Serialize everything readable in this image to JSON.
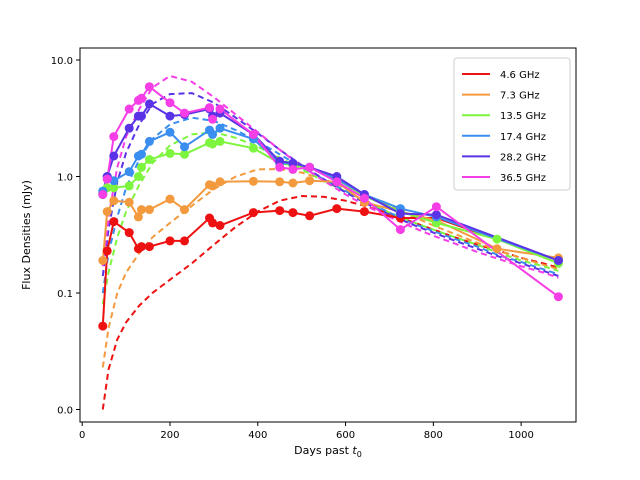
{
  "chart_data": {
    "type": "line",
    "title": "",
    "xlabel": "Days past ",
    "xlabel_math": "t",
    "xlabel_sub": "0",
    "ylabel": "Flux Densities (mJy)",
    "yscale": "log-like",
    "xlim": [
      -5,
      1125
    ],
    "xticks": [
      0,
      200,
      400,
      600,
      800,
      1000
    ],
    "xtick_labels": [
      "0",
      "200",
      "400",
      "600",
      "800",
      "1000"
    ],
    "ytick_labels": [
      "10.0",
      "1.0",
      "0.1",
      "0.0"
    ],
    "ytick_values": [
      10,
      1,
      0.1,
      0.01
    ],
    "legend_position": "top-right",
    "x": [
      47,
      57,
      72,
      107,
      128,
      135,
      153,
      200,
      233,
      290,
      297,
      314,
      390,
      450,
      480,
      518,
      580,
      643,
      725,
      807,
      945,
      1085
    ],
    "series": [
      {
        "name": "4.6 GHz",
        "color": "#ee1111",
        "values": [
          0.052,
          0.23,
          0.41,
          0.33,
          0.24,
          0.25,
          0.25,
          0.28,
          0.28,
          0.44,
          0.4,
          0.38,
          0.49,
          0.51,
          0.49,
          0.46,
          0.53,
          0.5,
          0.44,
          0.44,
          null,
          0.19
        ],
        "model_x": [
          47,
          60,
          80,
          100,
          130,
          160,
          200,
          250,
          300,
          350,
          400,
          450,
          500,
          550,
          600,
          650,
          700,
          750,
          800,
          850,
          900,
          950,
          1000,
          1050,
          1085
        ],
        "model": [
          0.01,
          0.022,
          0.04,
          0.056,
          0.078,
          0.1,
          0.13,
          0.18,
          0.26,
          0.37,
          0.5,
          0.62,
          0.68,
          0.67,
          0.62,
          0.55,
          0.48,
          0.41,
          0.35,
          0.3,
          0.26,
          0.23,
          0.2,
          0.18,
          0.165
        ]
      },
      {
        "name": "7.3 GHz",
        "color": "#f39a3e",
        "values": [
          0.19,
          0.5,
          0.62,
          0.6,
          0.45,
          0.52,
          0.52,
          0.64,
          0.52,
          0.85,
          0.83,
          0.9,
          0.91,
          0.9,
          0.88,
          0.92,
          0.9,
          0.6,
          0.5,
          0.42,
          0.24,
          0.2
        ],
        "model_x": [
          47,
          60,
          80,
          100,
          130,
          160,
          200,
          250,
          300,
          350,
          400,
          450,
          500,
          550,
          600,
          650,
          700,
          750,
          800,
          850,
          900,
          950,
          1000,
          1050,
          1085
        ],
        "model": [
          0.023,
          0.05,
          0.1,
          0.15,
          0.22,
          0.3,
          0.4,
          0.56,
          0.78,
          1.0,
          1.15,
          1.16,
          1.08,
          0.95,
          0.8,
          0.68,
          0.56,
          0.46,
          0.38,
          0.32,
          0.27,
          0.23,
          0.2,
          0.175,
          0.16
        ]
      },
      {
        "name": "13.5 GHz",
        "color": "#7df53e",
        "values": [
          0.72,
          0.8,
          0.8,
          0.83,
          1.0,
          1.2,
          1.4,
          1.58,
          1.55,
          1.95,
          1.9,
          2.0,
          1.75,
          1.3,
          1.25,
          1.2,
          0.95,
          0.68,
          0.5,
          0.4,
          0.29,
          0.18
        ],
        "model_x": [
          47,
          60,
          80,
          100,
          130,
          160,
          200,
          250,
          300,
          350,
          400,
          450,
          500,
          550,
          600,
          650,
          700,
          750,
          800,
          850,
          900,
          950,
          1000,
          1050,
          1085
        ],
        "model": [
          0.08,
          0.15,
          0.3,
          0.5,
          0.85,
          1.3,
          1.85,
          2.3,
          2.4,
          2.15,
          1.8,
          1.45,
          1.15,
          0.92,
          0.74,
          0.6,
          0.49,
          0.41,
          0.35,
          0.3,
          0.26,
          0.22,
          0.19,
          0.17,
          0.155
        ]
      },
      {
        "name": "17.4 GHz",
        "color": "#3a8ef0",
        "values": [
          0.75,
          1.0,
          0.92,
          1.1,
          1.5,
          1.55,
          2.0,
          2.4,
          1.8,
          2.5,
          2.3,
          2.6,
          2.1,
          1.3,
          1.3,
          1.2,
          0.95,
          0.7,
          0.53,
          0.45,
          null,
          0.19
        ],
        "model_x": [
          47,
          60,
          80,
          100,
          130,
          160,
          200,
          250,
          300,
          350,
          400,
          450,
          500,
          550,
          600,
          650,
          700,
          750,
          800,
          850,
          900,
          950,
          1000,
          1050,
          1085
        ],
        "model": [
          0.1,
          0.22,
          0.45,
          0.8,
          1.4,
          2.1,
          2.8,
          3.2,
          3.0,
          2.5,
          2.0,
          1.55,
          1.2,
          0.95,
          0.75,
          0.6,
          0.49,
          0.4,
          0.34,
          0.29,
          0.25,
          0.21,
          0.185,
          0.16,
          0.145
        ]
      },
      {
        "name": "28.2 GHz",
        "color": "#5b33e6",
        "values": [
          0.7,
          1.0,
          1.5,
          2.6,
          3.3,
          3.3,
          4.2,
          3.3,
          3.4,
          3.8,
          3.3,
          3.5,
          2.3,
          1.35,
          1.3,
          1.2,
          1.0,
          0.7,
          0.48,
          0.47,
          null,
          0.19
        ],
        "model_x": [
          47,
          60,
          80,
          100,
          130,
          160,
          200,
          250,
          300,
          350,
          400,
          450,
          500,
          550,
          600,
          650,
          700,
          750,
          800,
          850,
          900,
          950,
          1000,
          1050,
          1085
        ],
        "model": [
          0.14,
          0.35,
          0.9,
          1.6,
          2.8,
          4.2,
          5.1,
          5.2,
          4.3,
          3.2,
          2.35,
          1.7,
          1.25,
          0.95,
          0.73,
          0.58,
          0.47,
          0.39,
          0.33,
          0.28,
          0.24,
          0.205,
          0.18,
          0.155,
          0.14
        ]
      },
      {
        "name": "36.5 GHz",
        "color": "#f53ee6",
        "values": [
          0.7,
          0.95,
          2.2,
          3.8,
          4.5,
          4.7,
          5.9,
          4.3,
          3.5,
          3.9,
          3.1,
          3.8,
          2.3,
          1.2,
          1.15,
          1.2,
          0.9,
          0.65,
          0.35,
          0.55,
          null,
          0.093
        ],
        "model_x": [
          47,
          60,
          80,
          100,
          130,
          160,
          200,
          250,
          300,
          350,
          400,
          450,
          500,
          550,
          600,
          650,
          700,
          750,
          800,
          850,
          900,
          950,
          1000,
          1050,
          1085
        ],
        "model": [
          0.17,
          0.45,
          1.2,
          2.2,
          3.8,
          5.8,
          7.3,
          6.5,
          4.8,
          3.4,
          2.4,
          1.7,
          1.22,
          0.92,
          0.7,
          0.55,
          0.45,
          0.37,
          0.31,
          0.265,
          0.225,
          0.195,
          0.17,
          0.15,
          0.135
        ]
      }
    ]
  }
}
